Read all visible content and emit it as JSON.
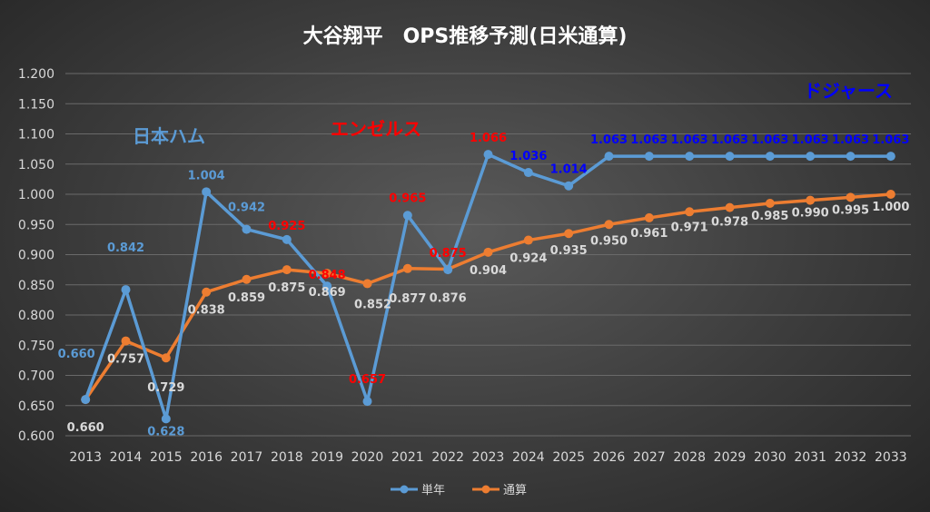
{
  "chart_data": {
    "type": "line",
    "title": "大谷翔平　OPS推移予測(日米通算)",
    "categories": [
      "2013",
      "2014",
      "2015",
      "2016",
      "2017",
      "2018",
      "2019",
      "2020",
      "2021",
      "2022",
      "2023",
      "2024",
      "2025",
      "2026",
      "2027",
      "2028",
      "2029",
      "2030",
      "2031",
      "2032",
      "2033"
    ],
    "ylim": [
      0.6,
      1.2
    ],
    "yticks": [
      "0.600",
      "0.650",
      "0.700",
      "0.750",
      "0.800",
      "0.850",
      "0.900",
      "0.950",
      "1.000",
      "1.050",
      "1.100",
      "1.150",
      "1.200"
    ],
    "grid": true,
    "legend_position": "bottom",
    "series": [
      {
        "name": "単年",
        "color": "#5b9bd5",
        "values": [
          0.66,
          0.842,
          0.628,
          1.004,
          0.942,
          0.925,
          0.848,
          0.657,
          0.965,
          0.875,
          1.066,
          1.036,
          1.014,
          1.063,
          1.063,
          1.063,
          1.063,
          1.063,
          1.063,
          1.063,
          1.063
        ],
        "labels": [
          "0.660",
          "0.842",
          "0.628",
          "1.004",
          "0.942",
          "0.925",
          "0.848",
          "0.657",
          "0.965",
          "0.875",
          "1.066",
          "1.036",
          "1.014",
          "1.063",
          "1.063",
          "1.063",
          "1.063",
          "1.063",
          "1.063",
          "1.063",
          "1.063"
        ],
        "label_colors": [
          "#5b9bd5",
          "#5b9bd5",
          "#5b9bd5",
          "#5b9bd5",
          "#5b9bd5",
          "#ff0000",
          "#ff0000",
          "#ff0000",
          "#ff0000",
          "#ff0000",
          "#ff0000",
          "#0000ff",
          "#0000ff",
          "#0000ff",
          "#0000ff",
          "#0000ff",
          "#0000ff",
          "#0000ff",
          "#0000ff",
          "#0000ff",
          "#0000ff"
        ]
      },
      {
        "name": "通算",
        "color": "#ed7d31",
        "values": [
          0.66,
          0.757,
          0.729,
          0.838,
          0.859,
          0.875,
          0.869,
          0.852,
          0.877,
          0.876,
          0.904,
          0.924,
          0.935,
          0.95,
          0.961,
          0.971,
          0.978,
          0.985,
          0.99,
          0.995,
          1.0
        ],
        "labels": [
          "0.660",
          "0.757",
          "0.729",
          "0.838",
          "0.859",
          "0.875",
          "0.869",
          "0.852",
          "0.877",
          "0.876",
          "0.904",
          "0.924",
          "0.935",
          "0.950",
          "0.961",
          "0.971",
          "0.978",
          "0.985",
          "0.990",
          "0.995",
          "1.000"
        ],
        "label_color": "#d9d9d9"
      }
    ],
    "annotations": [
      {
        "text": "日本ハム",
        "color": "#5b9bd5"
      },
      {
        "text": "エンゼルス",
        "color": "#ff0000"
      },
      {
        "text": "ドジャース",
        "color": "#0000ff"
      }
    ]
  }
}
